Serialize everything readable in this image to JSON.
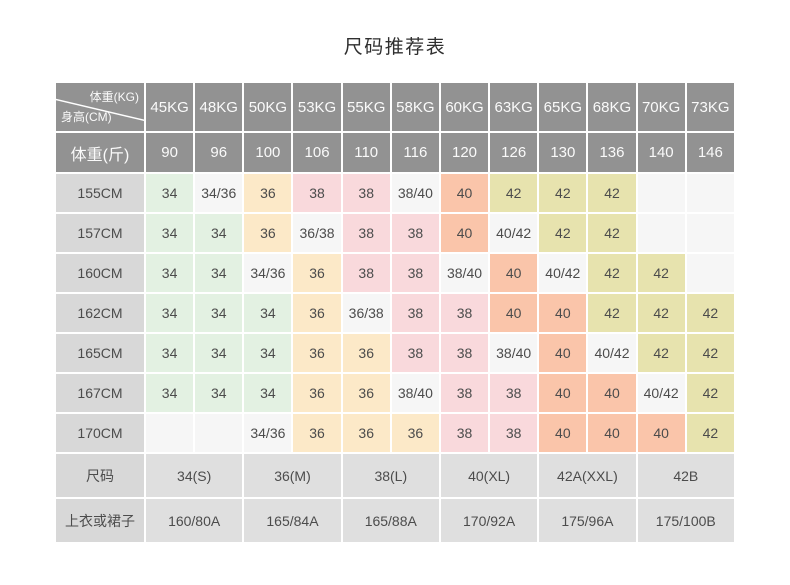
{
  "title": "尺码推荐表",
  "colors": {
    "header_bg": "#929292",
    "header_text": "#fafafa",
    "label_bg": "#d8d8d8",
    "footer_bg": "#dfdfdf",
    "cell_text": "#4c4c4c",
    "green": "#e3f1e2",
    "peach": "#fce9c8",
    "pink": "#f9d9dc",
    "salmon": "#fac5aa",
    "olive": "#e7e3ae",
    "blank": "#f6f6f6"
  },
  "chart_data": {
    "type": "table",
    "title": "尺码推荐表",
    "corner": {
      "top": "体重(KG)",
      "bottom": "身高(CM)"
    },
    "kg_values": [
      "45KG",
      "48KG",
      "50KG",
      "53KG",
      "55KG",
      "58KG",
      "60KG",
      "63KG",
      "65KG",
      "68KG",
      "70KG",
      "73KG"
    ],
    "jin_row": {
      "label": "体重(斤)",
      "values": [
        "90",
        "96",
        "100",
        "106",
        "110",
        "116",
        "120",
        "126",
        "130",
        "136",
        "140",
        "146"
      ]
    },
    "body_rows": [
      {
        "label": "155CM",
        "cells": [
          "34",
          "34/36",
          "36",
          "38",
          "38",
          "38/40",
          "40",
          "42",
          "42",
          "42",
          "",
          ""
        ]
      },
      {
        "label": "157CM",
        "cells": [
          "34",
          "34",
          "36",
          "36/38",
          "38",
          "38",
          "40",
          "40/42",
          "42",
          "42",
          "",
          ""
        ]
      },
      {
        "label": "160CM",
        "cells": [
          "34",
          "34",
          "34/36",
          "36",
          "38",
          "38",
          "38/40",
          "40",
          "40/42",
          "42",
          "42",
          ""
        ]
      },
      {
        "label": "162CM",
        "cells": [
          "34",
          "34",
          "34",
          "36",
          "36/38",
          "38",
          "38",
          "40",
          "40",
          "42",
          "42",
          "42"
        ]
      },
      {
        "label": "165CM",
        "cells": [
          "34",
          "34",
          "34",
          "36",
          "36",
          "38",
          "38",
          "38/40",
          "40",
          "40/42",
          "42",
          "42"
        ]
      },
      {
        "label": "167CM",
        "cells": [
          "34",
          "34",
          "34",
          "36",
          "36",
          "38/40",
          "38",
          "38",
          "40",
          "40",
          "40/42",
          "42"
        ]
      },
      {
        "label": "170CM",
        "cells": [
          "",
          "",
          "34/36",
          "36",
          "36",
          "36",
          "38",
          "38",
          "40",
          "40",
          "40",
          "42"
        ]
      }
    ],
    "color_map": {
      "34": "green",
      "36": "peach",
      "38": "pink",
      "40": "salmon",
      "42": "olive"
    },
    "footer": {
      "size_row_label": "尺码",
      "size_values": [
        "34(S)",
        "36(M)",
        "38(L)",
        "40(XL)",
        "42A(XXL)",
        "42B"
      ],
      "garment_row_label": "上衣或裙子",
      "garment_values": [
        "160/80A",
        "165/84A",
        "165/88A",
        "170/92A",
        "175/96A",
        "175/100B"
      ]
    }
  }
}
